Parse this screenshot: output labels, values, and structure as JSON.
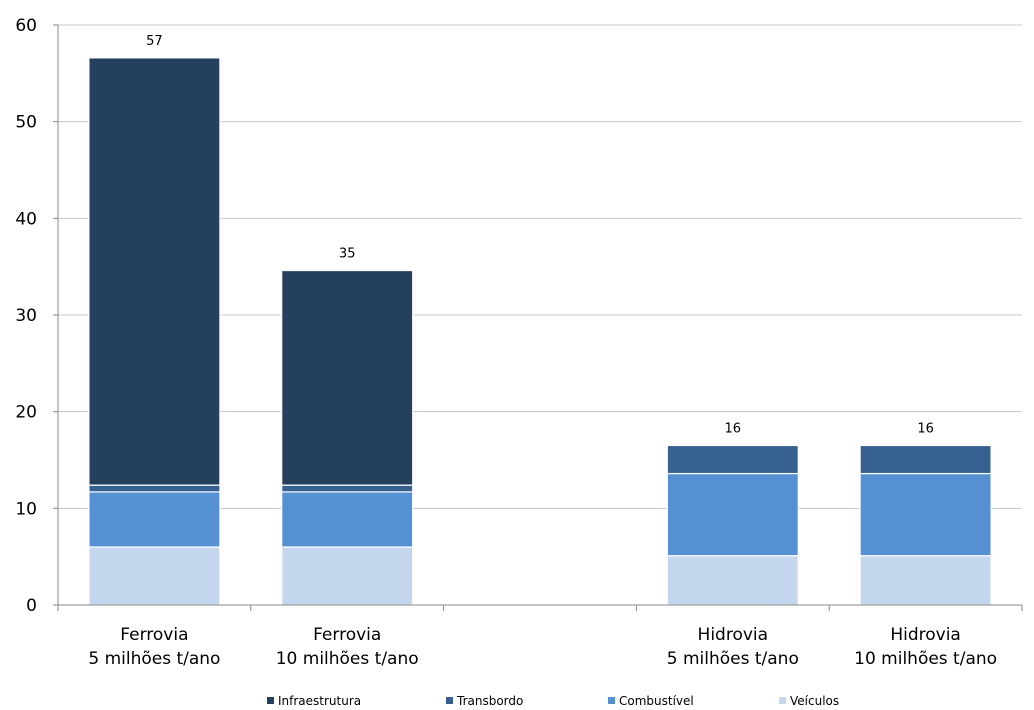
{
  "chart_data": {
    "type": "bar",
    "stacked": true,
    "categories": [
      [
        "Ferrovia",
        "5 milhões t/ano"
      ],
      [
        "Ferrovia",
        "10 milhões t/ano"
      ],
      [
        "",
        ""
      ],
      [
        "Hidrovia",
        "5 milhões t/ano"
      ],
      [
        "Hidrovia",
        "10 milhões t/ano"
      ]
    ],
    "series": [
      {
        "name": "Veículos",
        "color": "#c5d7ee",
        "values": [
          6.0,
          6.0,
          null,
          5.1,
          5.1
        ]
      },
      {
        "name": "Combustível",
        "color": "#5590d3",
        "values": [
          5.7,
          5.7,
          null,
          8.5,
          8.5
        ]
      },
      {
        "name": "Transbordo",
        "color": "#35608f",
        "values": [
          0.7,
          0.7,
          null,
          2.9,
          2.9
        ]
      },
      {
        "name": "Infraestrutura",
        "color": "#253f5f",
        "values": [
          44.2,
          22.2,
          null,
          0,
          0
        ]
      }
    ],
    "totals": [
      "57",
      "35",
      "",
      "16",
      "16"
    ],
    "ylim": [
      0,
      60
    ],
    "yticks": [
      0,
      10,
      20,
      30,
      40,
      50,
      60
    ],
    "grid": true,
    "legend_position": "bottom",
    "legend_order": [
      "Infraestrutura",
      "Transbordo",
      "Combustível",
      "Veículos"
    ],
    "title": "",
    "xlabel": "",
    "ylabel": ""
  }
}
